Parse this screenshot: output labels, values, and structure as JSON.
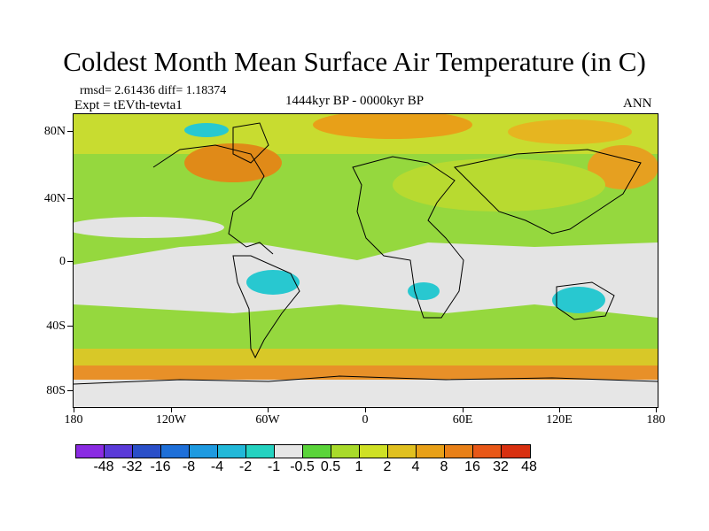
{
  "title": "Coldest Month Mean Surface Air Temperature (in C)",
  "stats": {
    "rmsd_diff": "rmsd= 2.61436 diff= 1.18374",
    "expt": "Expt = tEVth-tevta1",
    "period": "1444kyr BP - 0000kyr BP",
    "season": "ANN"
  },
  "map": {
    "y_labels": [
      "80N",
      "40N",
      "0",
      "40S",
      "80S"
    ],
    "x_labels": [
      "180",
      "120W",
      "60W",
      "0",
      "60E",
      "120E",
      "180"
    ],
    "ocean_color": "#95d83e",
    "land_color": "#d8d8d8"
  },
  "colorbar": {
    "colors": [
      "#8a2be2",
      "#5a3ad8",
      "#2a4fc8",
      "#1e6fd8",
      "#1e9ae0",
      "#22b8d8",
      "#25d2c0",
      "#e6e6e6",
      "#5ad43a",
      "#a8da2a",
      "#cfe025",
      "#e0c020",
      "#e8a018",
      "#e88018",
      "#e85818",
      "#d83010"
    ],
    "labels": [
      "-48",
      "-32",
      "-16",
      "-8",
      "-4",
      "-2",
      "-1",
      "-0.5",
      "0.5",
      "1",
      "2",
      "4",
      "8",
      "16",
      "32",
      "48"
    ]
  }
}
